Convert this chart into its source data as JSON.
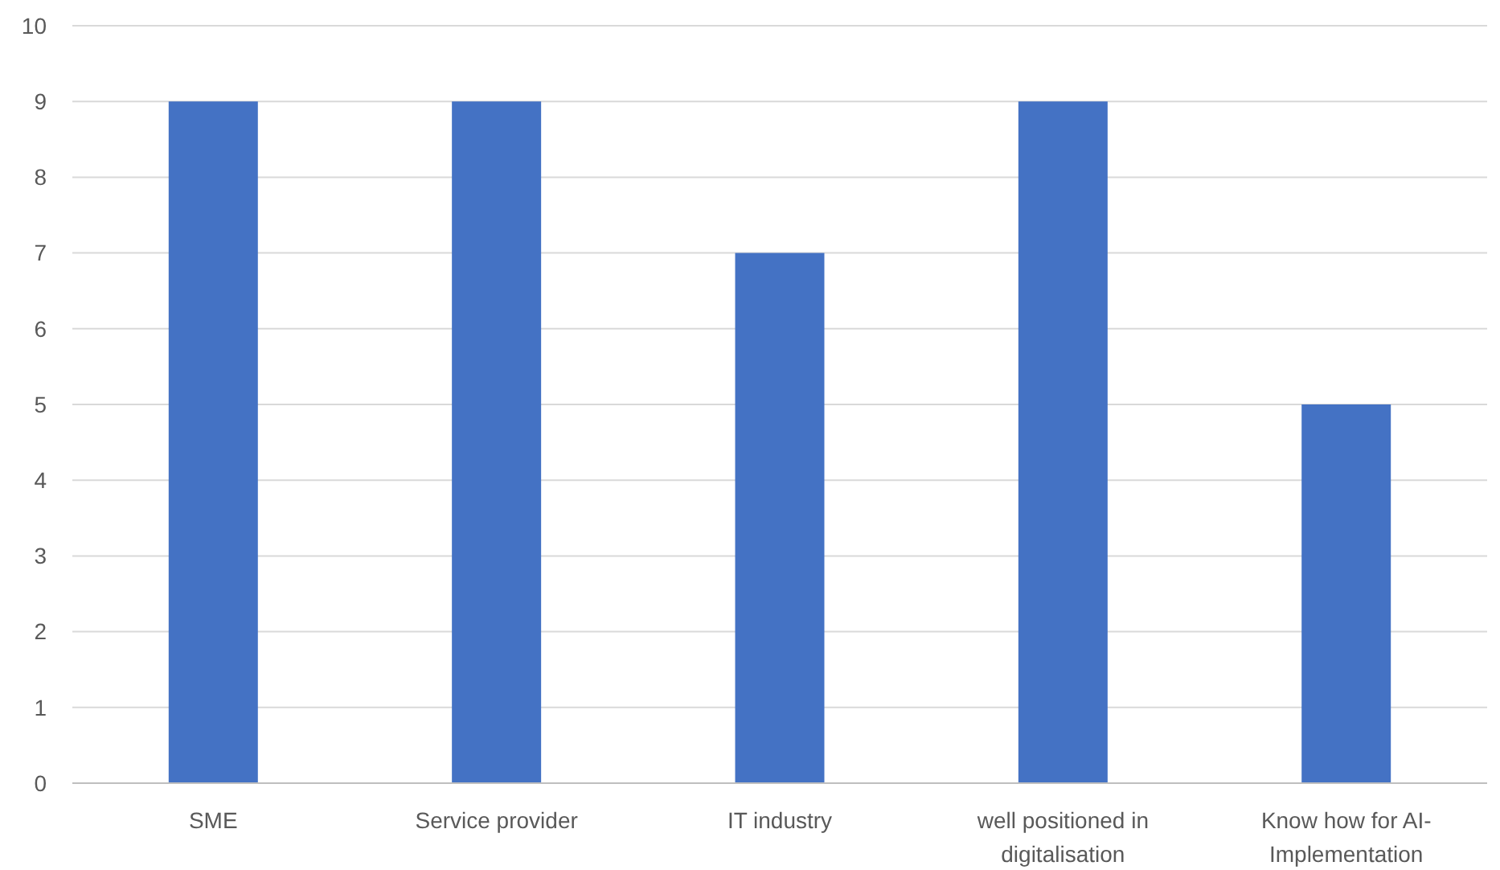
{
  "chart_data": {
    "type": "bar",
    "categories": [
      "SME",
      "Service provider",
      "IT industry",
      "well positioned in digitalisation",
      "Know how for AI-Implementation"
    ],
    "values": [
      9,
      9,
      7,
      9,
      5
    ],
    "color": "#4472c4",
    "ylim": [
      0,
      10
    ],
    "yticks": [
      0,
      1,
      2,
      3,
      4,
      5,
      6,
      7,
      8,
      9,
      10
    ],
    "grid": "y"
  }
}
